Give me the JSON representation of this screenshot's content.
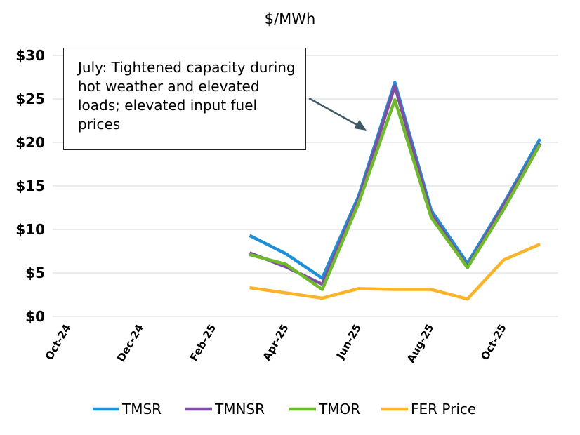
{
  "chart_data": {
    "type": "line",
    "title": "$/MWh",
    "xlabel": "",
    "ylabel": "",
    "ylim": [
      0,
      30
    ],
    "y_ticks": [
      "$0",
      "$5",
      "$10",
      "$15",
      "$20",
      "$25",
      "$30"
    ],
    "y_tick_values": [
      0,
      5,
      10,
      15,
      20,
      25,
      30
    ],
    "x": [
      "Oct-24",
      "Nov-24",
      "Dec-24",
      "Jan-25",
      "Feb-25",
      "Mar-25",
      "Apr-25",
      "May-25",
      "Jun-25",
      "Jul-25",
      "Aug-25",
      "Sep-25",
      "Oct-25",
      "Nov-25"
    ],
    "x_tick_labels": [
      "Oct-24",
      "Dec-24",
      "Feb-25",
      "Apr-25",
      "Jun-25",
      "Aug-25",
      "Oct-25"
    ],
    "grid": "horizontal",
    "legend": "bottom",
    "series": [
      {
        "name": "TMSR",
        "color": "#1f8fd6",
        "values": [
          null,
          null,
          null,
          null,
          null,
          9.3,
          7.2,
          4.4,
          13.8,
          26.9,
          12.2,
          6.1,
          13.0,
          20.4
        ]
      },
      {
        "name": "TMNSR",
        "color": "#7e4fa0",
        "values": [
          null,
          null,
          null,
          null,
          null,
          7.3,
          5.7,
          3.7,
          13.4,
          26.5,
          11.8,
          5.7,
          12.8,
          19.9
        ]
      },
      {
        "name": "TMOR",
        "color": "#6fba2c",
        "values": [
          null,
          null,
          null,
          null,
          null,
          7.1,
          6.0,
          3.1,
          13.0,
          24.9,
          11.4,
          5.6,
          12.3,
          19.8
        ]
      },
      {
        "name": "FER Price",
        "color": "#fbb42a",
        "values": [
          null,
          null,
          null,
          null,
          null,
          3.3,
          2.7,
          2.1,
          3.2,
          3.1,
          3.1,
          2.0,
          6.5,
          8.3
        ]
      }
    ],
    "annotation": "July: Tightened capacity during hot weather and elevated loads; elevated input fuel prices"
  }
}
